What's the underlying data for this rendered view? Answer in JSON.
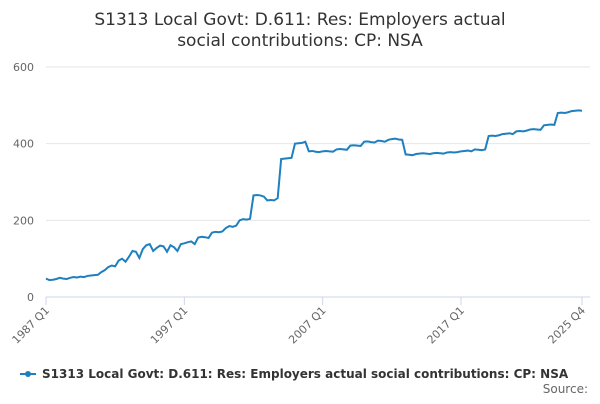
{
  "chart_data": {
    "type": "line",
    "title": "S1313 Local Govt: D.611: Res: Employers actual social contributions: CP: NSA",
    "source": "Source:",
    "categories": [
      "1987 Q1",
      null,
      null,
      null,
      null,
      null,
      null,
      null,
      null,
      null,
      null,
      null,
      null,
      null,
      null,
      null,
      null,
      null,
      null,
      null,
      null,
      null,
      null,
      null,
      null,
      null,
      null,
      null,
      null,
      null,
      null,
      null,
      null,
      null,
      null,
      null,
      null,
      null,
      null,
      null,
      "1997 Q1",
      null,
      null,
      null,
      null,
      null,
      null,
      null,
      null,
      null,
      null,
      null,
      null,
      null,
      null,
      null,
      null,
      null,
      null,
      null,
      null,
      null,
      null,
      null,
      null,
      null,
      null,
      null,
      null,
      null,
      null,
      null,
      null,
      null,
      null,
      null,
      null,
      null,
      null,
      null,
      "2007 Q1",
      null,
      null,
      null,
      null,
      null,
      null,
      null,
      null,
      null,
      null,
      null,
      null,
      null,
      null,
      null,
      null,
      null,
      null,
      null,
      null,
      null,
      null,
      null,
      null,
      null,
      null,
      null,
      null,
      null,
      null,
      null,
      null,
      null,
      null,
      null,
      null,
      null,
      null,
      null,
      "2017 Q1",
      null,
      null,
      null,
      null,
      null,
      null,
      null,
      null,
      null,
      null,
      null,
      null,
      null,
      null,
      null,
      null,
      null,
      null,
      null,
      null,
      null,
      null,
      null,
      null,
      null,
      null,
      null,
      null,
      null,
      null,
      null,
      null,
      null,
      null,
      "2025 Q4"
    ],
    "series": [
      {
        "name": "S1313 Local Govt: D.611: Res: Employers actual social contributions: CP: NSA",
        "color": "#1f7fbf",
        "values": [
          48,
          44,
          45,
          47,
          50,
          48,
          47,
          50,
          52,
          51,
          53,
          52,
          55,
          56,
          57,
          58,
          65,
          70,
          78,
          82,
          80,
          95,
          100,
          92,
          105,
          120,
          118,
          102,
          125,
          135,
          138,
          120,
          128,
          134,
          132,
          118,
          135,
          130,
          120,
          138,
          140,
          143,
          145,
          138,
          155,
          157,
          156,
          154,
          168,
          170,
          169,
          171,
          180,
          185,
          183,
          186,
          200,
          203,
          202,
          204,
          265,
          266,
          265,
          262,
          252,
          253,
          252,
          258,
          360,
          361,
          362,
          363,
          400,
          401,
          402,
          405,
          380,
          381,
          379,
          378,
          380,
          381,
          380,
          379,
          385,
          386,
          385,
          384,
          395,
          396,
          395,
          394,
          405,
          406,
          404,
          403,
          408,
          407,
          405,
          410,
          412,
          413,
          411,
          410,
          372,
          371,
          370,
          373,
          374,
          375,
          374,
          373,
          375,
          376,
          375,
          374,
          377,
          378,
          377,
          378,
          380,
          381,
          382,
          380,
          385,
          384,
          383,
          385,
          420,
          421,
          420,
          422,
          425,
          426,
          427,
          425,
          432,
          433,
          432,
          434,
          437,
          438,
          437,
          436,
          448,
          449,
          450,
          449,
          480,
          481,
          480,
          482,
          485,
          486,
          487,
          486
        ]
      }
    ],
    "ylim": [
      0,
      600
    ],
    "yticks": [
      0,
      200,
      400,
      600
    ],
    "grid": true,
    "legend": "bottom"
  }
}
